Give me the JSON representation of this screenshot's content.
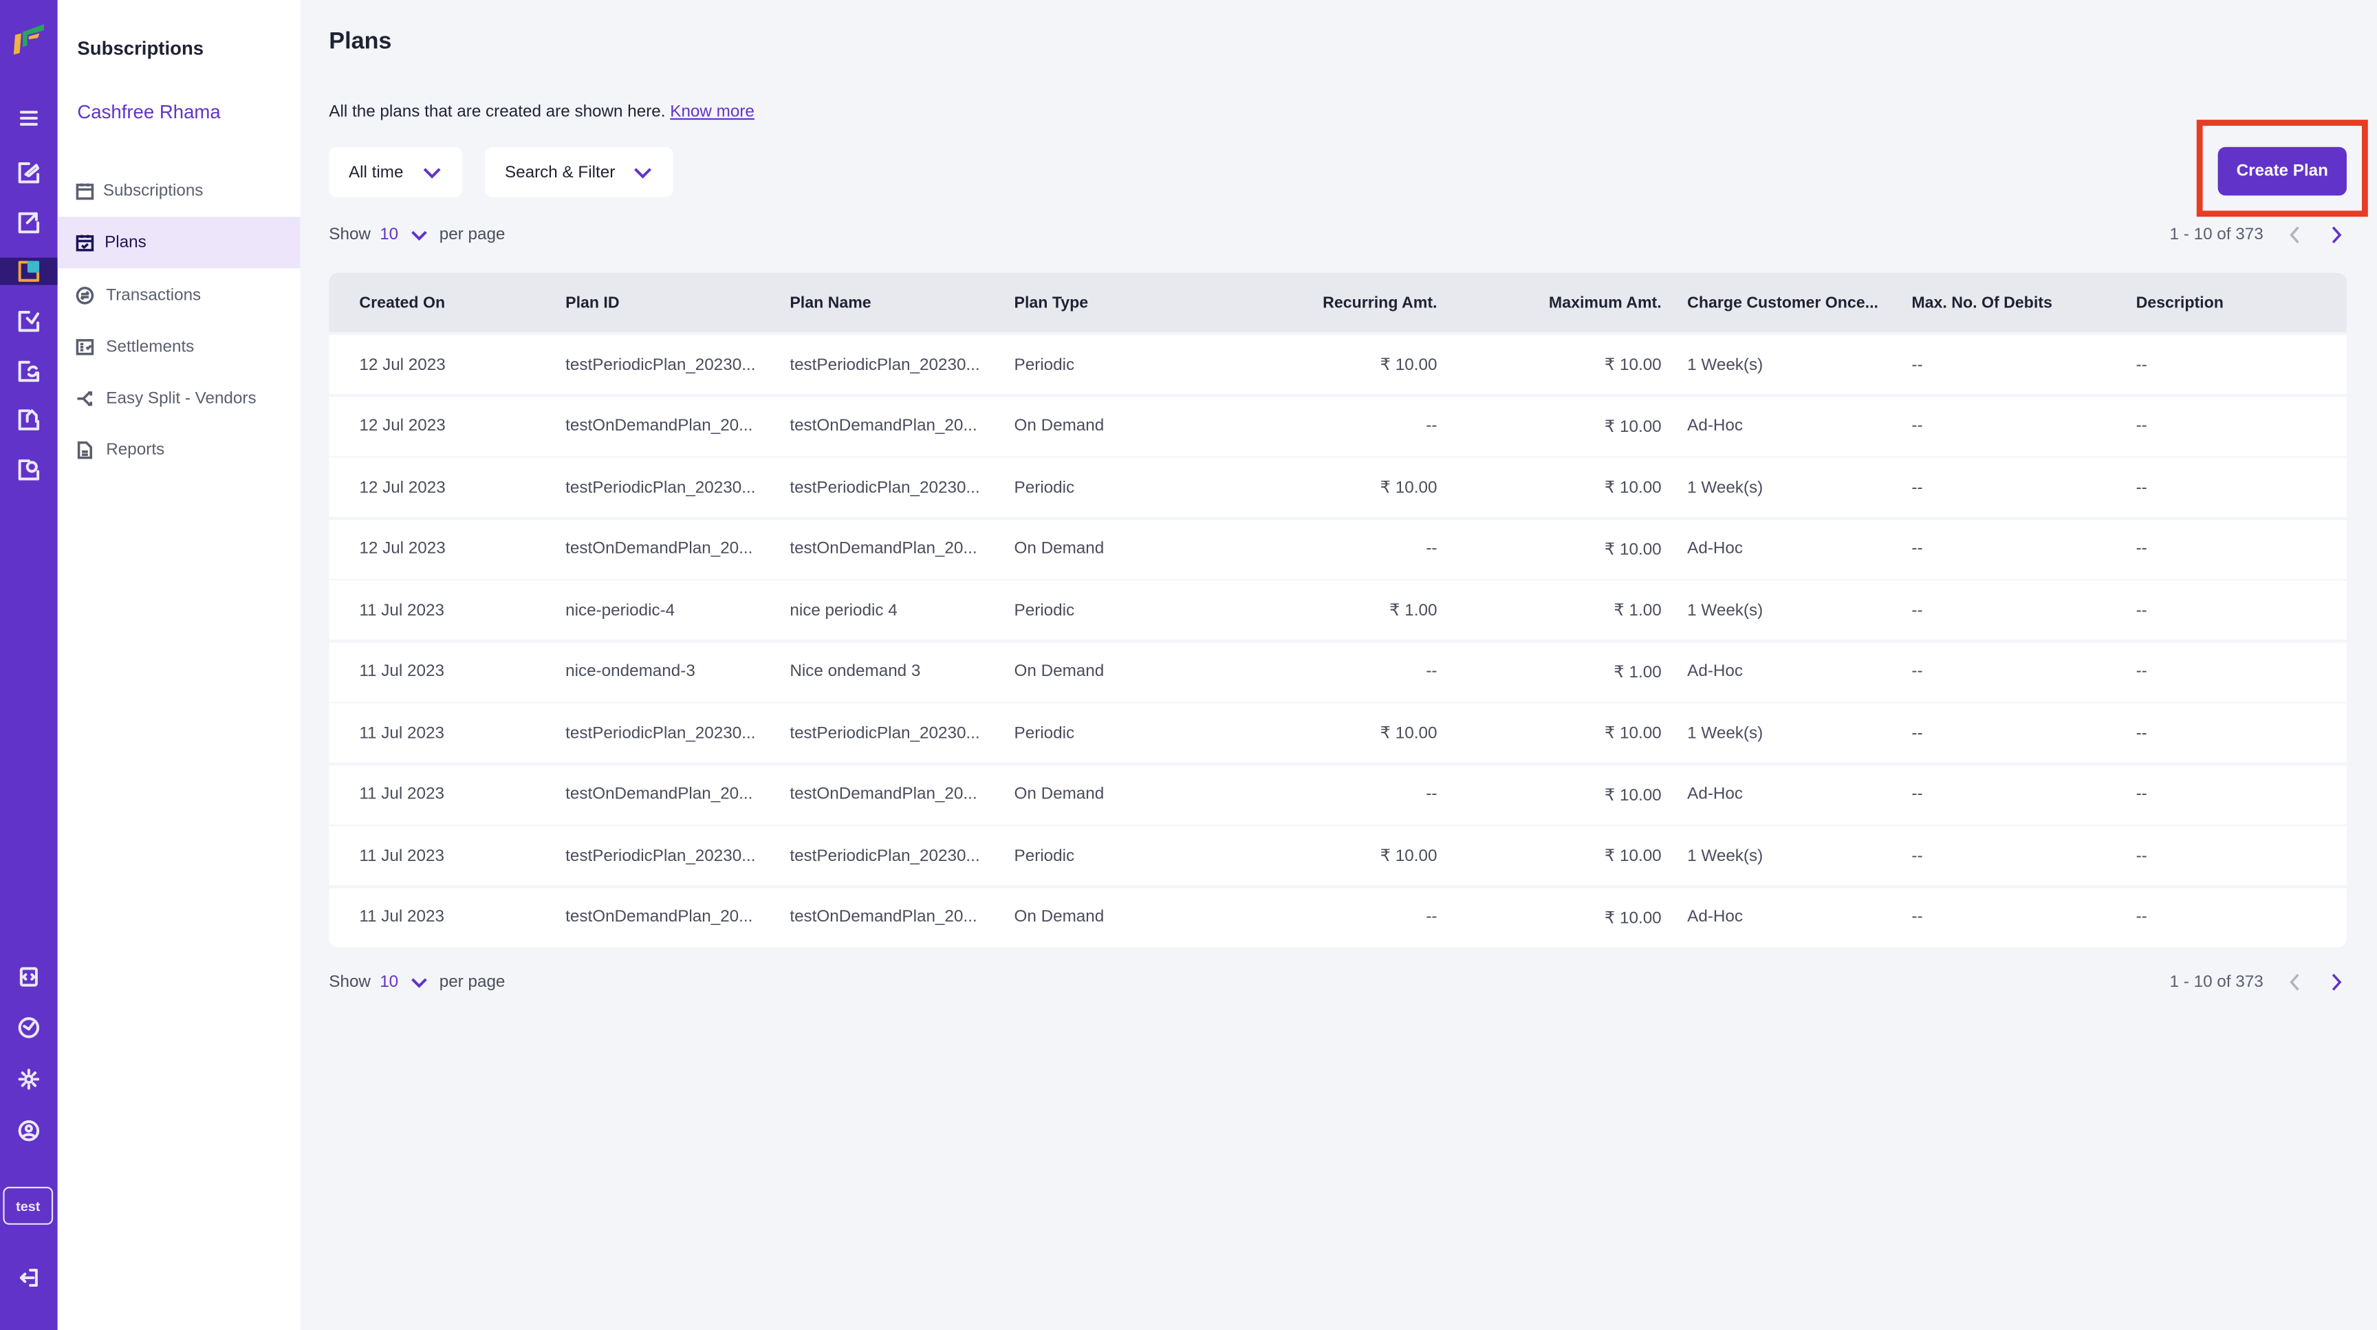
{
  "rail": {
    "icons": [
      "logo-icon",
      "menu-icon",
      "payment-links-icon",
      "payouts-icon",
      "subscriptions-icon",
      "verification-icon",
      "refunds-icon",
      "home-icon",
      "support-icon",
      "developers-icon",
      "downloads-icon",
      "settings-icon",
      "profile-icon",
      "logout-icon"
    ],
    "env_badge": "test"
  },
  "sidebar": {
    "title": "Subscriptions",
    "merchant": "Cashfree Rhama",
    "items": [
      {
        "label": "Subscriptions",
        "icon": "calendar-icon"
      },
      {
        "label": "Plans",
        "icon": "calendar-check-icon",
        "active": true
      },
      {
        "label": "Transactions",
        "icon": "exchange-icon"
      },
      {
        "label": "Settlements",
        "icon": "checklist-icon"
      },
      {
        "label": "Easy Split - Vendors",
        "icon": "split-icon"
      },
      {
        "label": "Reports",
        "icon": "document-icon"
      }
    ]
  },
  "main": {
    "title": "Plans",
    "description": "All the plans that are created are shown here.",
    "know_more": "Know more",
    "filters": {
      "time": "All time",
      "search": "Search & Filter"
    },
    "create_button": "Create Plan",
    "per_page": {
      "show": "Show",
      "value": "10",
      "suffix": "per page"
    },
    "pagination": {
      "range": "1 - 10 of 373"
    },
    "accent_color": "#6133c8",
    "highlight_color": "#e63d25"
  },
  "table": {
    "columns": [
      "Created On",
      "Plan ID",
      "Plan Name",
      "Plan Type",
      "Recurring Amt.",
      "Maximum Amt.",
      "Charge Customer Once...",
      "Max. No. Of Debits",
      "Description"
    ],
    "rows": [
      [
        "12 Jul 2023",
        "testPeriodicPlan_20230...",
        "testPeriodicPlan_20230...",
        "Periodic",
        "₹ 10.00",
        "₹ 10.00",
        "1 Week(s)",
        "--",
        "--"
      ],
      [
        "12 Jul 2023",
        "testOnDemandPlan_20...",
        "testOnDemandPlan_20...",
        "On Demand",
        "--",
        "₹ 10.00",
        "Ad-Hoc",
        "--",
        "--"
      ],
      [
        "12 Jul 2023",
        "testPeriodicPlan_20230...",
        "testPeriodicPlan_20230...",
        "Periodic",
        "₹ 10.00",
        "₹ 10.00",
        "1 Week(s)",
        "--",
        "--"
      ],
      [
        "12 Jul 2023",
        "testOnDemandPlan_20...",
        "testOnDemandPlan_20...",
        "On Demand",
        "--",
        "₹ 10.00",
        "Ad-Hoc",
        "--",
        "--"
      ],
      [
        "11 Jul 2023",
        "nice-periodic-4",
        "nice periodic 4",
        "Periodic",
        "₹ 1.00",
        "₹ 1.00",
        "1 Week(s)",
        "--",
        "--"
      ],
      [
        "11 Jul 2023",
        "nice-ondemand-3",
        "Nice ondemand 3",
        "On Demand",
        "--",
        "₹ 1.00",
        "Ad-Hoc",
        "--",
        "--"
      ],
      [
        "11 Jul 2023",
        "testPeriodicPlan_20230...",
        "testPeriodicPlan_20230...",
        "Periodic",
        "₹ 10.00",
        "₹ 10.00",
        "1 Week(s)",
        "--",
        "--"
      ],
      [
        "11 Jul 2023",
        "testOnDemandPlan_20...",
        "testOnDemandPlan_20...",
        "On Demand",
        "--",
        "₹ 10.00",
        "Ad-Hoc",
        "--",
        "--"
      ],
      [
        "11 Jul 2023",
        "testPeriodicPlan_20230...",
        "testPeriodicPlan_20230...",
        "Periodic",
        "₹ 10.00",
        "₹ 10.00",
        "1 Week(s)",
        "--",
        "--"
      ],
      [
        "11 Jul 2023",
        "testOnDemandPlan_20...",
        "testOnDemandPlan_20...",
        "On Demand",
        "--",
        "₹ 10.00",
        "Ad-Hoc",
        "--",
        "--"
      ]
    ]
  }
}
